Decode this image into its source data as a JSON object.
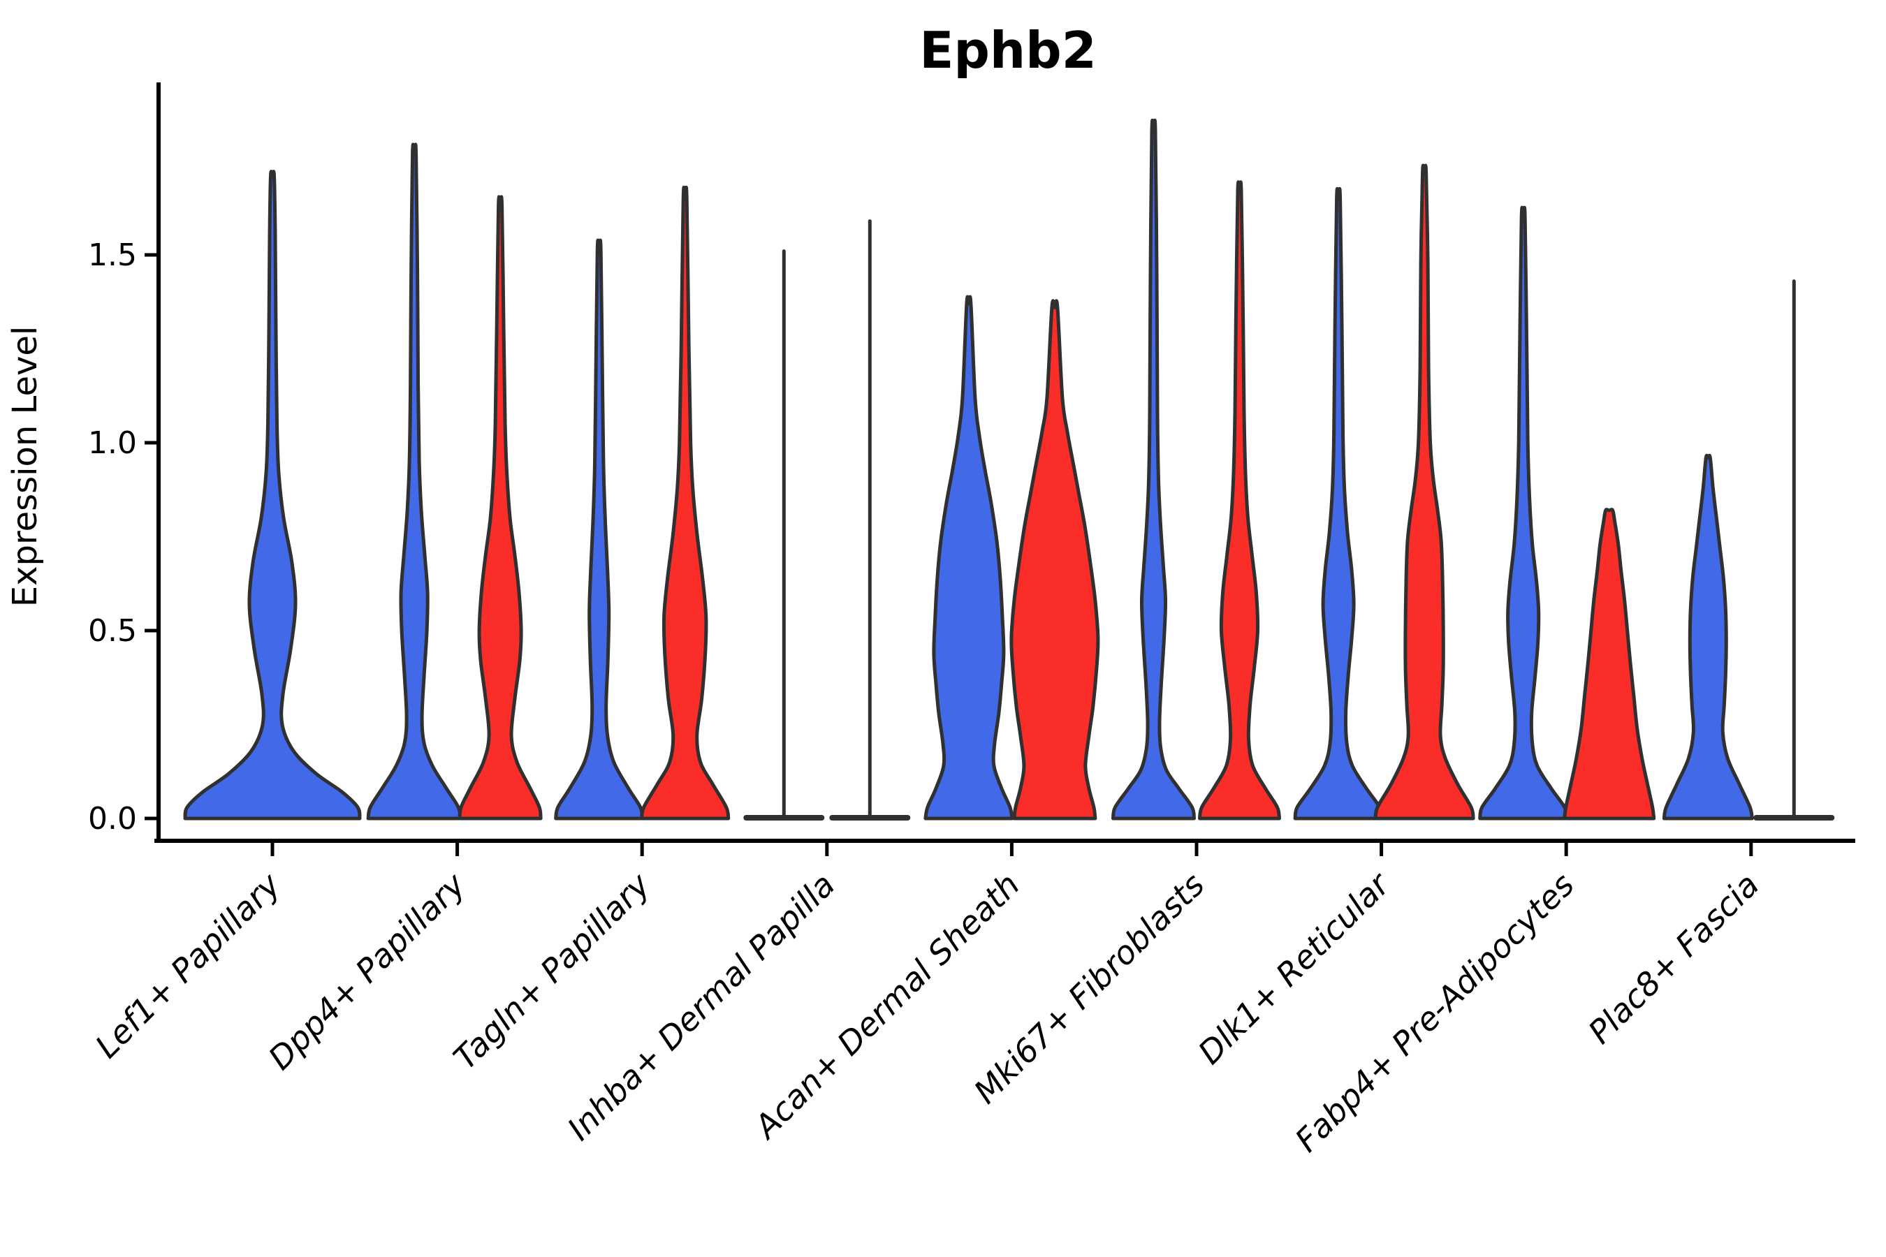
{
  "chart_data": {
    "type": "violin",
    "title": "Ephb2",
    "ylabel": "Expression Level",
    "ylim": [
      -0.06,
      1.96
    ],
    "yticks": [
      0.0,
      0.5,
      1.0,
      1.5
    ],
    "ytick_labels": [
      "0.0",
      "0.5",
      "1.0",
      "1.5"
    ],
    "grid": false,
    "legend": "none",
    "x_label_rotation_deg": 45,
    "colors": {
      "blue": "#4269E7",
      "red": "#FB2D28",
      "outline": "#303030",
      "axis": "#000000",
      "text": "#000000"
    },
    "groups": [
      {
        "category": "Lef1+ Papillary",
        "violins": [
          {
            "series": "blue",
            "offset": 0,
            "max": 1.71,
            "collapsed": false,
            "profile": [
              [
                0,
                125
              ],
              [
                0.03,
                122
              ],
              [
                0.07,
                100
              ],
              [
                0.12,
                62
              ],
              [
                0.18,
                30
              ],
              [
                0.25,
                14
              ],
              [
                0.33,
                15
              ],
              [
                0.45,
                26
              ],
              [
                0.57,
                33
              ],
              [
                0.68,
                28
              ],
              [
                0.8,
                16
              ],
              [
                0.92,
                9
              ],
              [
                1.05,
                6.5
              ],
              [
                1.3,
                5
              ],
              [
                1.55,
                4
              ],
              [
                1.71,
                2.5
              ]
            ]
          }
        ]
      },
      {
        "category": "Dpp4+ Papillary",
        "violins": [
          {
            "series": "blue",
            "offset": -61.5,
            "max": 1.77,
            "collapsed": false,
            "profile": [
              [
                0,
                66
              ],
              [
                0.03,
                63
              ],
              [
                0.08,
                46
              ],
              [
                0.14,
                26
              ],
              [
                0.2,
                14
              ],
              [
                0.27,
                11
              ],
              [
                0.38,
                14
              ],
              [
                0.5,
                18
              ],
              [
                0.6,
                19
              ],
              [
                0.7,
                15
              ],
              [
                0.82,
                10
              ],
              [
                0.95,
                7
              ],
              [
                1.15,
                5.5
              ],
              [
                1.45,
                4.5
              ],
              [
                1.77,
                2.5
              ]
            ]
          },
          {
            "series": "red",
            "offset": 61.5,
            "max": 1.63,
            "collapsed": false,
            "profile": [
              [
                0,
                58
              ],
              [
                0.03,
                56
              ],
              [
                0.08,
                43
              ],
              [
                0.15,
                24
              ],
              [
                0.22,
                16
              ],
              [
                0.32,
                21
              ],
              [
                0.42,
                28
              ],
              [
                0.5,
                30
              ],
              [
                0.6,
                27
              ],
              [
                0.7,
                21
              ],
              [
                0.8,
                14
              ],
              [
                0.92,
                9.5
              ],
              [
                1.05,
                7
              ],
              [
                1.3,
                5
              ],
              [
                1.63,
                2.5
              ]
            ]
          }
        ]
      },
      {
        "category": "Tagln+ Papillary",
        "violins": [
          {
            "series": "blue",
            "offset": -61.5,
            "max": 1.51,
            "collapsed": false,
            "profile": [
              [
                0,
                62
              ],
              [
                0.03,
                59
              ],
              [
                0.08,
                42
              ],
              [
                0.15,
                21
              ],
              [
                0.22,
                12
              ],
              [
                0.3,
                10
              ],
              [
                0.42,
                12.5
              ],
              [
                0.55,
                14
              ],
              [
                0.66,
                12
              ],
              [
                0.78,
                9
              ],
              [
                0.92,
                6.5
              ],
              [
                1.12,
                5
              ],
              [
                1.51,
                2.5
              ]
            ]
          },
          {
            "series": "red",
            "offset": 61.5,
            "max": 1.65,
            "collapsed": false,
            "profile": [
              [
                0,
                62
              ],
              [
                0.03,
                59
              ],
              [
                0.09,
                40
              ],
              [
                0.15,
                22
              ],
              [
                0.22,
                17
              ],
              [
                0.32,
                24
              ],
              [
                0.44,
                29
              ],
              [
                0.54,
                30
              ],
              [
                0.64,
                25
              ],
              [
                0.76,
                17
              ],
              [
                0.88,
                11
              ],
              [
                1.0,
                8
              ],
              [
                1.25,
                5.5
              ],
              [
                1.65,
                2.5
              ]
            ]
          }
        ]
      },
      {
        "category": "Inhba+ Dermal Papilla",
        "violins": [
          {
            "series": "blue",
            "offset": -61.5,
            "max": 1.51,
            "collapsed": true,
            "base_halfwidth": 58
          },
          {
            "series": "red",
            "offset": 61.5,
            "max": 1.59,
            "collapsed": true,
            "base_halfwidth": 58
          }
        ]
      },
      {
        "category": "Acan+ Dermal Sheath",
        "violins": [
          {
            "series": "blue",
            "offset": -61.5,
            "max": 1.37,
            "collapsed": false,
            "profile": [
              [
                0,
                62
              ],
              [
                0.03,
                59
              ],
              [
                0.08,
                47
              ],
              [
                0.14,
                36
              ],
              [
                0.2,
                37
              ],
              [
                0.28,
                43
              ],
              [
                0.36,
                47
              ],
              [
                0.44,
                50
              ],
              [
                0.54,
                48
              ],
              [
                0.64,
                45
              ],
              [
                0.74,
                40
              ],
              [
                0.84,
                32
              ],
              [
                0.93,
                23
              ],
              [
                1.02,
                15
              ],
              [
                1.12,
                9
              ],
              [
                1.37,
                3
              ]
            ]
          },
          {
            "series": "red",
            "offset": 61.5,
            "max": 1.36,
            "collapsed": false,
            "profile": [
              [
                0,
                58
              ],
              [
                0.03,
                56
              ],
              [
                0.08,
                49
              ],
              [
                0.14,
                44
              ],
              [
                0.22,
                49
              ],
              [
                0.3,
                55
              ],
              [
                0.4,
                60
              ],
              [
                0.48,
                62
              ],
              [
                0.58,
                58
              ],
              [
                0.68,
                51
              ],
              [
                0.78,
                43
              ],
              [
                0.87,
                34
              ],
              [
                0.95,
                26
              ],
              [
                1.03,
                18
              ],
              [
                1.12,
                11
              ],
              [
                1.36,
                4
              ]
            ]
          }
        ]
      },
      {
        "category": "Mki67+ Fibroblasts",
        "violins": [
          {
            "series": "blue",
            "offset": -61.5,
            "max": 1.83,
            "collapsed": false,
            "profile": [
              [
                0,
                58
              ],
              [
                0.03,
                55
              ],
              [
                0.08,
                36
              ],
              [
                0.13,
                18
              ],
              [
                0.19,
                10
              ],
              [
                0.26,
                8.5
              ],
              [
                0.36,
                11
              ],
              [
                0.48,
                15
              ],
              [
                0.58,
                17
              ],
              [
                0.67,
                14
              ],
              [
                0.78,
                10
              ],
              [
                0.9,
                7
              ],
              [
                1.08,
                5.5
              ],
              [
                1.45,
                4.5
              ],
              [
                1.83,
                2.5
              ]
            ]
          },
          {
            "series": "red",
            "offset": 61.5,
            "max": 1.67,
            "collapsed": false,
            "profile": [
              [
                0,
                57
              ],
              [
                0.03,
                54
              ],
              [
                0.08,
                37
              ],
              [
                0.14,
                19
              ],
              [
                0.21,
                13
              ],
              [
                0.3,
                15
              ],
              [
                0.4,
                21
              ],
              [
                0.5,
                26
              ],
              [
                0.6,
                24
              ],
              [
                0.7,
                18
              ],
              [
                0.8,
                12
              ],
              [
                0.92,
                8.5
              ],
              [
                1.08,
                6.5
              ],
              [
                1.35,
                5
              ],
              [
                1.67,
                2.5
              ]
            ]
          }
        ]
      },
      {
        "category": "Dlk1+ Reticular",
        "violins": [
          {
            "series": "blue",
            "offset": -61.5,
            "max": 1.65,
            "collapsed": false,
            "profile": [
              [
                0,
                62
              ],
              [
                0.03,
                59
              ],
              [
                0.08,
                40
              ],
              [
                0.14,
                20
              ],
              [
                0.2,
                12
              ],
              [
                0.28,
                10.5
              ],
              [
                0.38,
                14
              ],
              [
                0.48,
                19
              ],
              [
                0.57,
                22
              ],
              [
                0.66,
                19
              ],
              [
                0.76,
                13
              ],
              [
                0.88,
                8.5
              ],
              [
                1.02,
                6.5
              ],
              [
                1.3,
                5
              ],
              [
                1.65,
                2.5
              ]
            ]
          },
          {
            "series": "red",
            "offset": 61.5,
            "max": 1.72,
            "collapsed": false,
            "profile": [
              [
                0,
                70
              ],
              [
                0.03,
                67
              ],
              [
                0.09,
                48
              ],
              [
                0.16,
                30
              ],
              [
                0.22,
                23
              ],
              [
                0.3,
                25
              ],
              [
                0.4,
                27
              ],
              [
                0.52,
                27
              ],
              [
                0.64,
                26
              ],
              [
                0.74,
                24
              ],
              [
                0.82,
                19
              ],
              [
                0.9,
                13
              ],
              [
                1.0,
                8.5
              ],
              [
                1.2,
                6
              ],
              [
                1.48,
                5
              ],
              [
                1.72,
                2.5
              ]
            ]
          }
        ]
      },
      {
        "category": "Fabp4+ Pre-Adipocytes",
        "violins": [
          {
            "series": "blue",
            "offset": -61.5,
            "max": 1.6,
            "collapsed": false,
            "profile": [
              [
                0,
                62
              ],
              [
                0.03,
                59
              ],
              [
                0.08,
                40
              ],
              [
                0.14,
                20
              ],
              [
                0.2,
                13
              ],
              [
                0.28,
                12
              ],
              [
                0.38,
                17
              ],
              [
                0.47,
                21
              ],
              [
                0.55,
                22
              ],
              [
                0.63,
                19
              ],
              [
                0.73,
                13
              ],
              [
                0.85,
                9
              ],
              [
                1.0,
                6.5
              ],
              [
                1.25,
                5
              ],
              [
                1.6,
                2.5
              ]
            ]
          },
          {
            "series": "red",
            "offset": 61.5,
            "max": 0.82,
            "collapsed": false,
            "profile": [
              [
                0,
                64
              ],
              [
                0.03,
                62
              ],
              [
                0.09,
                55
              ],
              [
                0.16,
                47
              ],
              [
                0.24,
                40
              ],
              [
                0.33,
                35
              ],
              [
                0.42,
                30
              ],
              [
                0.5,
                26
              ],
              [
                0.58,
                22
              ],
              [
                0.66,
                17
              ],
              [
                0.73,
                13
              ],
              [
                0.79,
                8
              ],
              [
                0.82,
                5
              ]
            ]
          }
        ]
      },
      {
        "category": "Plac8+ Fascia",
        "violins": [
          {
            "series": "blue",
            "offset": -61.5,
            "max": 0.96,
            "collapsed": false,
            "profile": [
              [
                0,
                63
              ],
              [
                0.03,
                60
              ],
              [
                0.09,
                45
              ],
              [
                0.16,
                28
              ],
              [
                0.23,
                21
              ],
              [
                0.3,
                23
              ],
              [
                0.38,
                25
              ],
              [
                0.47,
                26
              ],
              [
                0.56,
                25
              ],
              [
                0.64,
                22
              ],
              [
                0.72,
                17
              ],
              [
                0.8,
                12
              ],
              [
                0.88,
                7
              ],
              [
                0.96,
                3
              ]
            ]
          },
          {
            "series": "red",
            "offset": 61.5,
            "max": 1.43,
            "collapsed": true,
            "base_halfwidth": 58
          }
        ]
      }
    ]
  }
}
